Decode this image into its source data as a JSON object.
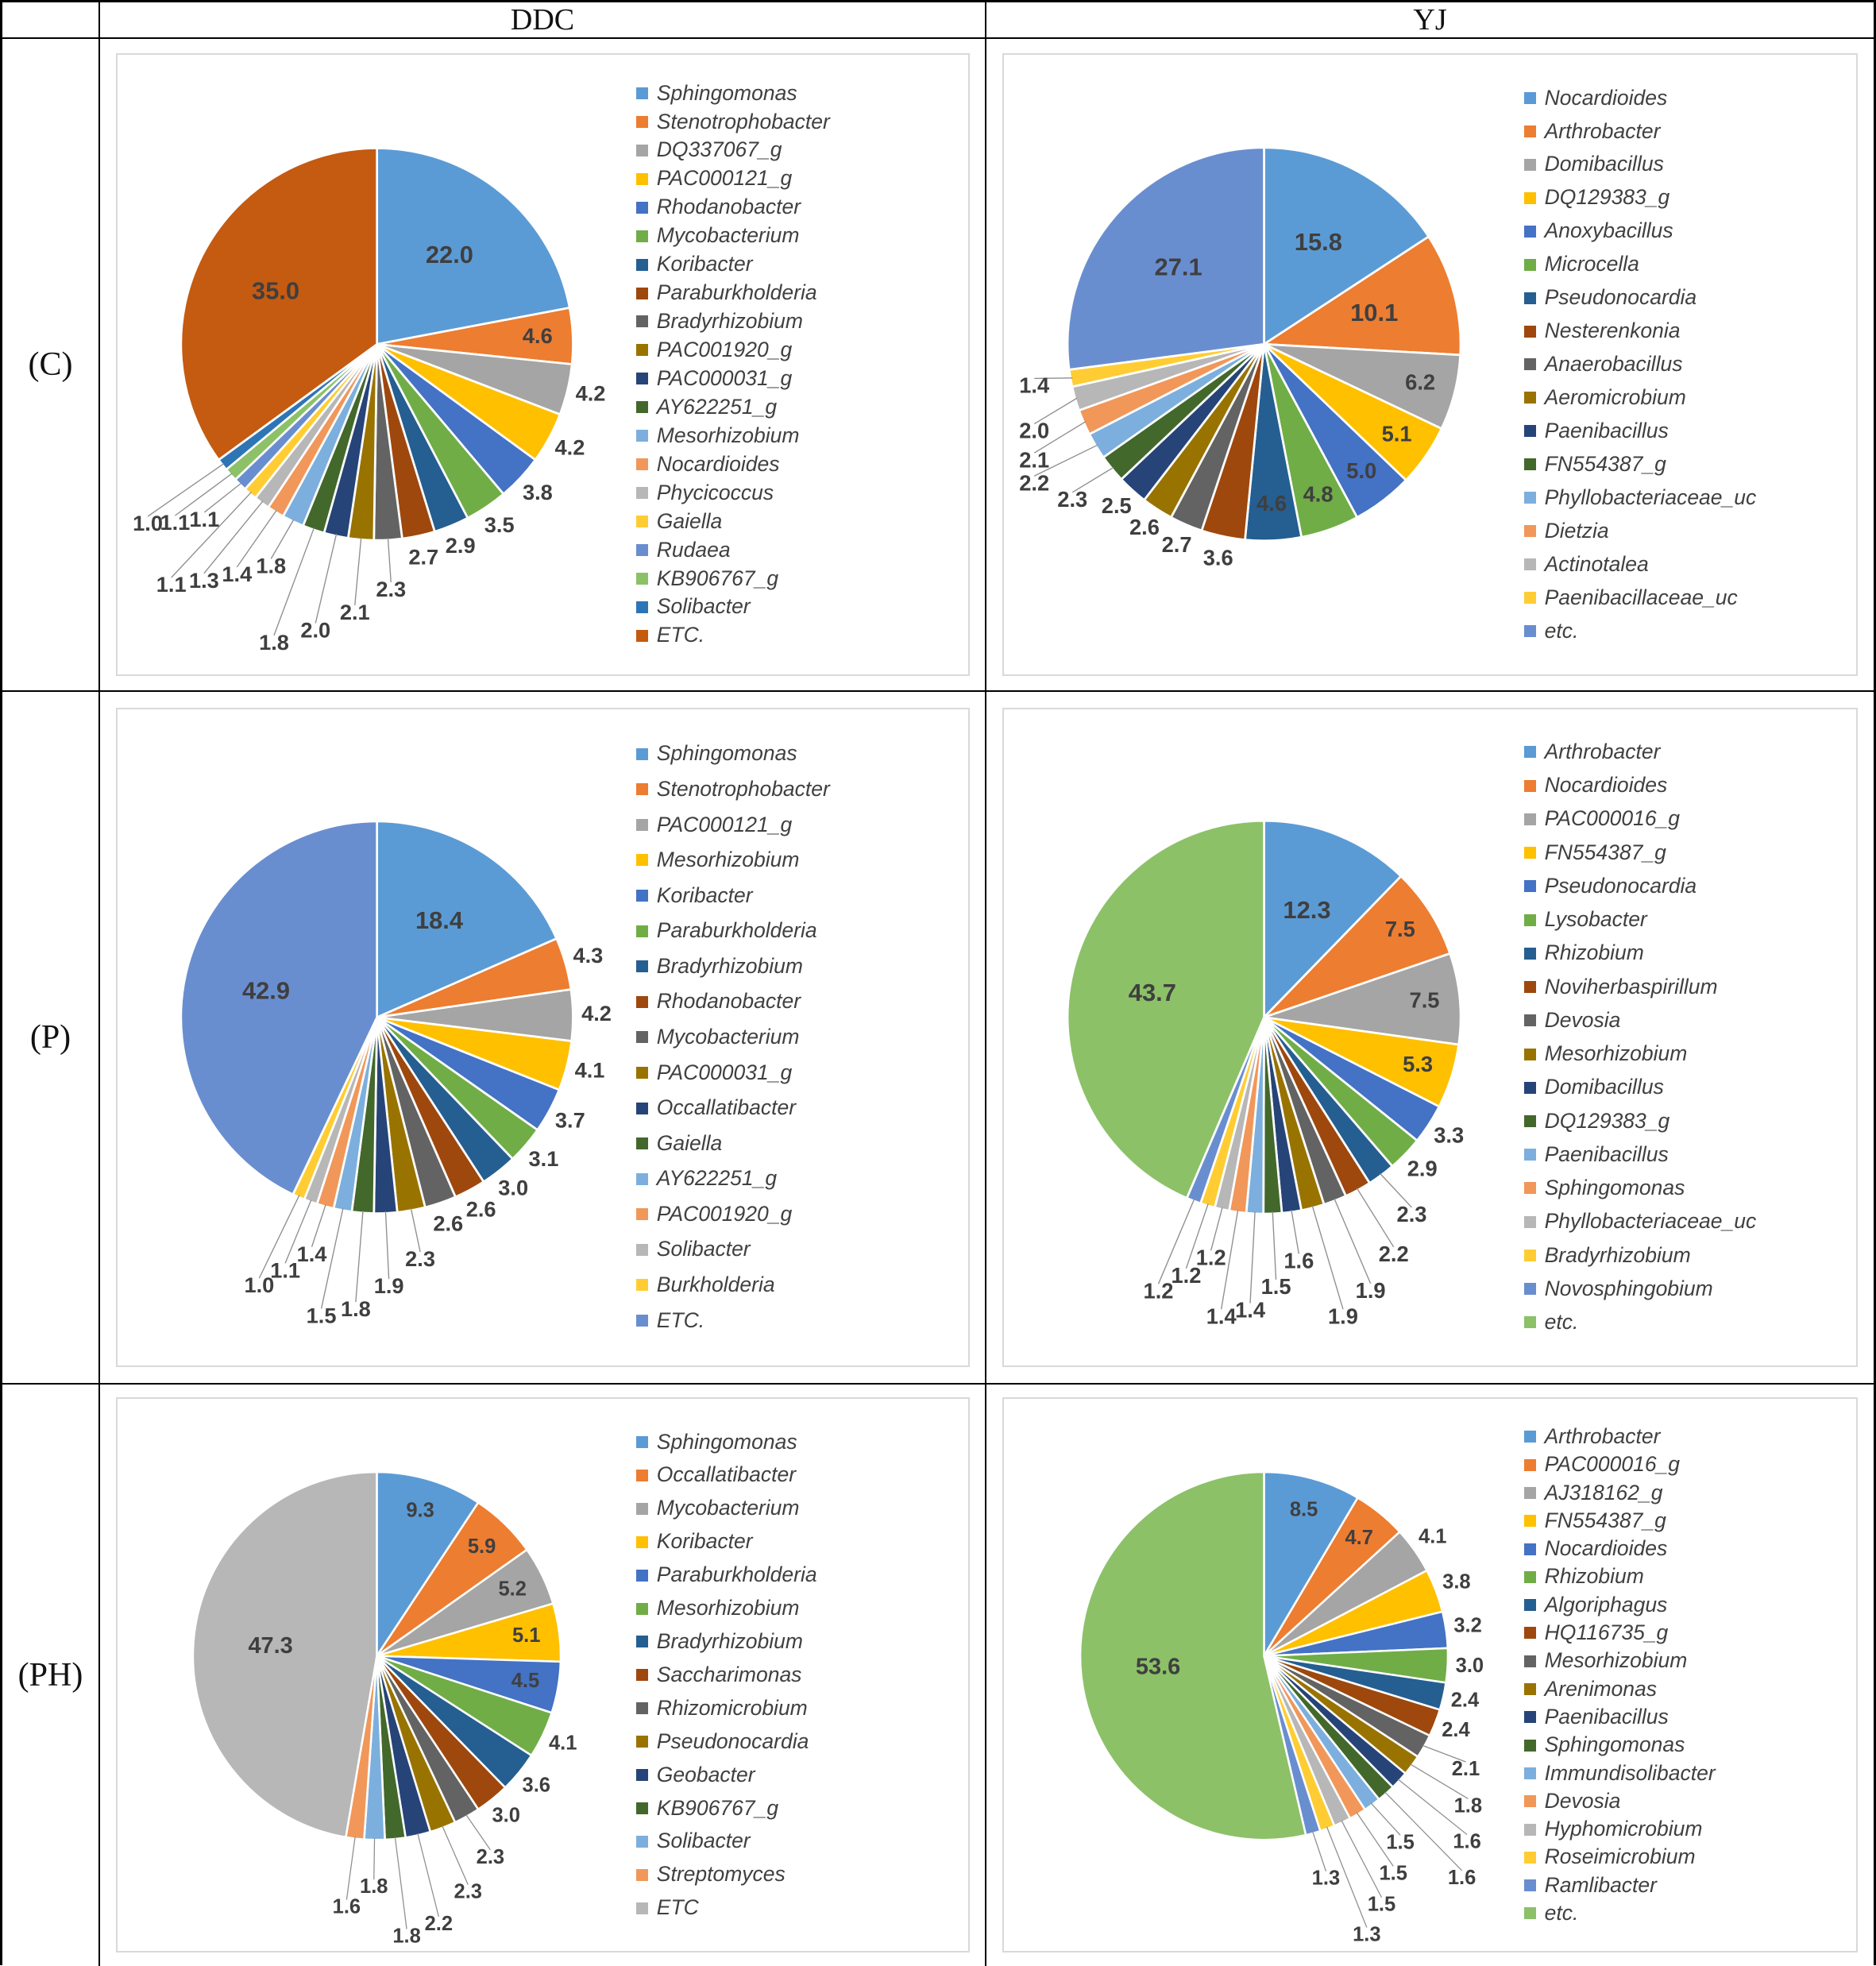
{
  "header": {
    "corner": "",
    "cols": [
      "DDC",
      "YJ"
    ]
  },
  "rows": [
    {
      "label": "(C)"
    },
    {
      "label": "(P)"
    },
    {
      "label": "(PH)"
    }
  ],
  "palette": [
    "#5B9BD5",
    "#ED7D31",
    "#A5A5A5",
    "#FFC000",
    "#4472C4",
    "#70AD47",
    "#255E91",
    "#9E480E",
    "#636363",
    "#997300",
    "#264478",
    "#43682B",
    "#7CAFDD",
    "#F1975A",
    "#B7B7B7",
    "#FFCD33",
    "#698ED0",
    "#8CC168",
    "#2E75B6",
    "#C55A11"
  ],
  "chart_data": [
    {
      "type": "pie",
      "row": "(C)",
      "col": "DDC",
      "legend_position": "right",
      "labels": [
        "Sphingomonas",
        "Stenotrophobacter",
        "DQ337067_g",
        "PAC000121_g",
        "Rhodanobacter",
        "Mycobacterium",
        "Koribacter",
        "Paraburkholderia",
        "Bradyrhizobium",
        "PAC001920_g",
        "PAC000031_g",
        "AY622251_g",
        "Mesorhizobium",
        "Nocardioides",
        "Phycicoccus",
        "Gaiella",
        "Rudaea",
        "KB906767_g",
        "Solibacter",
        "ETC."
      ],
      "values": [
        22.0,
        4.6,
        4.2,
        4.2,
        3.8,
        3.5,
        2.9,
        2.7,
        2.3,
        2.1,
        2.0,
        1.8,
        1.8,
        1.4,
        1.3,
        1.1,
        1.1,
        1.1,
        1.0,
        35.0
      ]
    },
    {
      "type": "pie",
      "row": "(C)",
      "col": "YJ",
      "legend_position": "right",
      "labels": [
        "Nocardioides",
        "Arthrobacter",
        "Domibacillus",
        "DQ129383_g",
        "Anoxybacillus",
        "Microcella",
        "Pseudonocardia",
        "Nesterenkonia",
        "Anaerobacillus",
        "Aeromicrobium",
        "Paenibacillus",
        "FN554387_g",
        "Phyllobacteriaceae_uc",
        "Dietzia",
        "Actinotalea",
        "Paenibacillaceae_uc",
        "etc."
      ],
      "values": [
        15.8,
        10.1,
        6.2,
        5.1,
        5.0,
        4.8,
        4.6,
        3.6,
        2.7,
        2.6,
        2.5,
        2.3,
        2.2,
        2.1,
        2.0,
        1.4,
        27.1
      ]
    },
    {
      "type": "pie",
      "row": "(P)",
      "col": "DDC",
      "legend_position": "right",
      "labels": [
        "Sphingomonas",
        "Stenotrophobacter",
        "PAC000121_g",
        "Mesorhizobium",
        "Koribacter",
        "Paraburkholderia",
        "Bradyrhizobium",
        "Rhodanobacter",
        "Mycobacterium",
        "PAC000031_g",
        "Occallatibacter",
        "Gaiella",
        "AY622251_g",
        "PAC001920_g",
        "Solibacter",
        "Burkholderia",
        "ETC."
      ],
      "values": [
        18.4,
        4.3,
        4.2,
        4.1,
        3.7,
        3.1,
        3.0,
        2.6,
        2.6,
        2.3,
        1.9,
        1.8,
        1.5,
        1.4,
        1.1,
        1.0,
        42.9
      ]
    },
    {
      "type": "pie",
      "row": "(P)",
      "col": "YJ",
      "legend_position": "right",
      "labels": [
        "Arthrobacter",
        "Nocardioides",
        "PAC000016_g",
        "FN554387_g",
        "Pseudonocardia",
        "Lysobacter",
        "Rhizobium",
        "Noviherbaspirillum",
        "Devosia",
        "Mesorhizobium",
        "Domibacillus",
        "DQ129383_g",
        "Paenibacillus",
        "Sphingomonas",
        "Phyllobacteriaceae_uc",
        "Bradyrhizobium",
        "Novosphingobium",
        "etc."
      ],
      "values": [
        12.3,
        7.5,
        7.5,
        5.3,
        3.3,
        2.9,
        2.3,
        2.2,
        1.9,
        1.9,
        1.6,
        1.5,
        1.4,
        1.4,
        1.2,
        1.2,
        1.2,
        43.7
      ]
    },
    {
      "type": "pie",
      "row": "(PH)",
      "col": "DDC",
      "legend_position": "right",
      "labels": [
        "Sphingomonas",
        "Occallatibacter",
        "Mycobacterium",
        "Koribacter",
        "Paraburkholderia",
        "Mesorhizobium",
        "Bradyrhizobium",
        "Saccharimonas",
        "Rhizomicrobium",
        "Pseudonocardia",
        "Geobacter",
        "KB906767_g",
        "Solibacter",
        "Streptomyces",
        "ETC"
      ],
      "values": [
        9.3,
        5.9,
        5.2,
        5.1,
        4.5,
        4.1,
        3.6,
        3.0,
        2.3,
        2.3,
        2.2,
        1.8,
        1.8,
        1.6,
        47.3
      ]
    },
    {
      "type": "pie",
      "row": "(PH)",
      "col": "YJ",
      "legend_position": "right",
      "labels": [
        "Arthrobacter",
        "PAC000016_g",
        "AJ318162_g",
        "FN554387_g",
        "Nocardioides",
        "Rhizobium",
        "Algoriphagus",
        "HQ116735_g",
        "Mesorhizobium",
        "Arenimonas",
        "Paenibacillus",
        "Sphingomonas",
        "Immundisolibacter",
        "Devosia",
        "Hyphomicrobium",
        "Roseimicrobium",
        "Ramlibacter",
        "etc."
      ],
      "values": [
        8.5,
        4.7,
        4.1,
        3.8,
        3.2,
        3.0,
        2.4,
        2.4,
        2.1,
        1.8,
        1.6,
        1.6,
        1.5,
        1.5,
        1.5,
        1.3,
        1.3,
        53.6
      ]
    }
  ]
}
